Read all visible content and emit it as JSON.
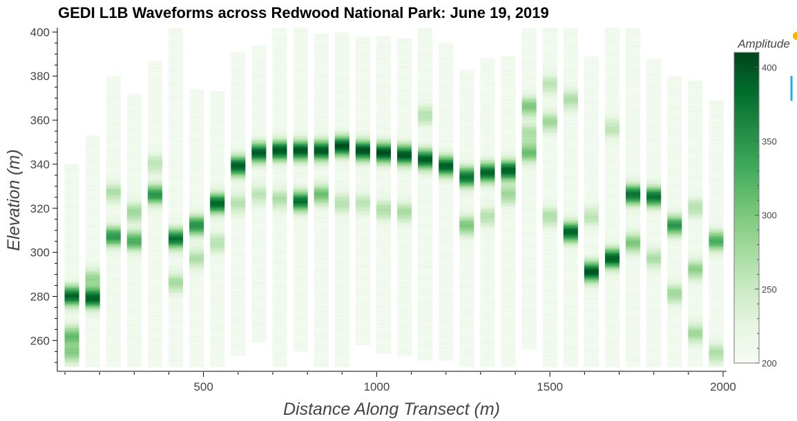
{
  "chart_data": {
    "type": "heatmap",
    "title": "GEDI L1B Waveforms across Redwood National Park: June 19, 2019",
    "xlabel": "Distance Along Transect (m)",
    "ylabel": "Elevation (m)",
    "xlim": [
      80,
      2010
    ],
    "ylim": [
      246,
      402
    ],
    "x_ticks": [
      500,
      1000,
      1500,
      2000
    ],
    "y_ticks": [
      260,
      280,
      300,
      320,
      340,
      360,
      380,
      400
    ],
    "colorbar": {
      "title": "Amplitude",
      "range": [
        200,
        410
      ],
      "ticks": [
        200,
        250,
        300,
        350,
        400
      ],
      "colors": [
        "#f7fcf5",
        "#e5f5e0",
        "#c7e9c0",
        "#a1d99b",
        "#74c476",
        "#41ab5d",
        "#238b45",
        "#006d2c",
        "#00441b"
      ]
    },
    "column_width": 50,
    "shots": [
      {
        "x": 120,
        "top": 340,
        "bottom": 248,
        "peaks": [
          [
            280,
            380
          ],
          [
            262,
            300
          ],
          [
            254,
            280
          ]
        ]
      },
      {
        "x": 180,
        "top": 353,
        "bottom": 248,
        "peaks": [
          [
            279,
            385
          ],
          [
            288,
            270
          ]
        ]
      },
      {
        "x": 240,
        "top": 380,
        "bottom": 248,
        "peaks": [
          [
            307,
            340
          ],
          [
            327,
            260
          ]
        ]
      },
      {
        "x": 300,
        "top": 372,
        "bottom": 248,
        "peaks": [
          [
            305,
            320
          ],
          [
            318,
            270
          ]
        ]
      },
      {
        "x": 360,
        "top": 387,
        "bottom": 248,
        "peaks": [
          [
            326,
            340
          ],
          [
            340,
            250
          ]
        ]
      },
      {
        "x": 420,
        "top": 402,
        "bottom": 248,
        "peaks": [
          [
            306,
            370
          ],
          [
            286,
            265
          ]
        ]
      },
      {
        "x": 480,
        "top": 374,
        "bottom": 248,
        "peaks": [
          [
            312,
            345
          ],
          [
            297,
            260
          ]
        ]
      },
      {
        "x": 540,
        "top": 373,
        "bottom": 248,
        "peaks": [
          [
            322,
            380
          ],
          [
            304,
            255
          ]
        ]
      },
      {
        "x": 600,
        "top": 391,
        "bottom": 253,
        "peaks": [
          [
            339,
            385
          ],
          [
            322,
            255
          ]
        ]
      },
      {
        "x": 660,
        "top": 394,
        "bottom": 259,
        "peaks": [
          [
            345,
            385
          ],
          [
            326,
            250
          ]
        ]
      },
      {
        "x": 720,
        "top": 402,
        "bottom": 248,
        "peaks": [
          [
            346,
            390
          ],
          [
            324,
            260
          ]
        ]
      },
      {
        "x": 780,
        "top": 402,
        "bottom": 255,
        "peaks": [
          [
            346,
            390
          ],
          [
            323,
            370
          ]
        ]
      },
      {
        "x": 840,
        "top": 399,
        "bottom": 248,
        "peaks": [
          [
            346,
            390
          ],
          [
            326,
            300
          ]
        ]
      },
      {
        "x": 900,
        "top": 400,
        "bottom": 248,
        "peaks": [
          [
            348,
            395
          ],
          [
            322,
            255
          ]
        ]
      },
      {
        "x": 960,
        "top": 398,
        "bottom": 258,
        "peaks": [
          [
            346,
            395
          ],
          [
            322,
            250
          ]
        ]
      },
      {
        "x": 1020,
        "top": 398,
        "bottom": 254,
        "peaks": [
          [
            345,
            395
          ],
          [
            319,
            260
          ]
        ]
      },
      {
        "x": 1080,
        "top": 397,
        "bottom": 253,
        "peaks": [
          [
            344,
            390
          ],
          [
            318,
            265
          ]
        ]
      },
      {
        "x": 1140,
        "top": 402,
        "bottom": 251,
        "peaks": [
          [
            342,
            385
          ],
          [
            362,
            255
          ]
        ]
      },
      {
        "x": 1200,
        "top": 395,
        "bottom": 251,
        "peaks": [
          [
            339,
            385
          ]
        ]
      },
      {
        "x": 1260,
        "top": 383,
        "bottom": 248,
        "peaks": [
          [
            334,
            370
          ],
          [
            312,
            290
          ]
        ]
      },
      {
        "x": 1320,
        "top": 388,
        "bottom": 248,
        "peaks": [
          [
            336,
            380
          ],
          [
            316,
            255
          ]
        ]
      },
      {
        "x": 1380,
        "top": 389,
        "bottom": 248,
        "peaks": [
          [
            337,
            385
          ],
          [
            326,
            270
          ]
        ]
      },
      {
        "x": 1440,
        "top": 402,
        "bottom": 256,
        "peaks": [
          [
            345,
            300
          ],
          [
            366,
            290
          ],
          [
            354,
            260
          ]
        ]
      },
      {
        "x": 1500,
        "top": 402,
        "bottom": 248,
        "peaks": [
          [
            359,
            270
          ],
          [
            316,
            260
          ],
          [
            376,
            250
          ]
        ]
      },
      {
        "x": 1560,
        "top": 402,
        "bottom": 248,
        "peaks": [
          [
            309,
            380
          ],
          [
            369,
            260
          ]
        ]
      },
      {
        "x": 1620,
        "top": 389,
        "bottom": 248,
        "peaks": [
          [
            291,
            390
          ],
          [
            316,
            250
          ]
        ]
      },
      {
        "x": 1680,
        "top": 402,
        "bottom": 248,
        "peaks": [
          [
            297,
            385
          ],
          [
            356,
            250
          ]
        ]
      },
      {
        "x": 1740,
        "top": 402,
        "bottom": 248,
        "peaks": [
          [
            326,
            370
          ],
          [
            304,
            290
          ]
        ]
      },
      {
        "x": 1800,
        "top": 388,
        "bottom": 248,
        "peaks": [
          [
            325,
            370
          ],
          [
            297,
            260
          ]
        ]
      },
      {
        "x": 1860,
        "top": 380,
        "bottom": 248,
        "peaks": [
          [
            312,
            340
          ],
          [
            281,
            270
          ]
        ]
      },
      {
        "x": 1920,
        "top": 378,
        "bottom": 248,
        "peaks": [
          [
            292,
            280
          ],
          [
            263,
            270
          ],
          [
            320,
            255
          ]
        ]
      },
      {
        "x": 1980,
        "top": 369,
        "bottom": 248,
        "peaks": [
          [
            305,
            320
          ],
          [
            254,
            260
          ]
        ]
      }
    ]
  }
}
